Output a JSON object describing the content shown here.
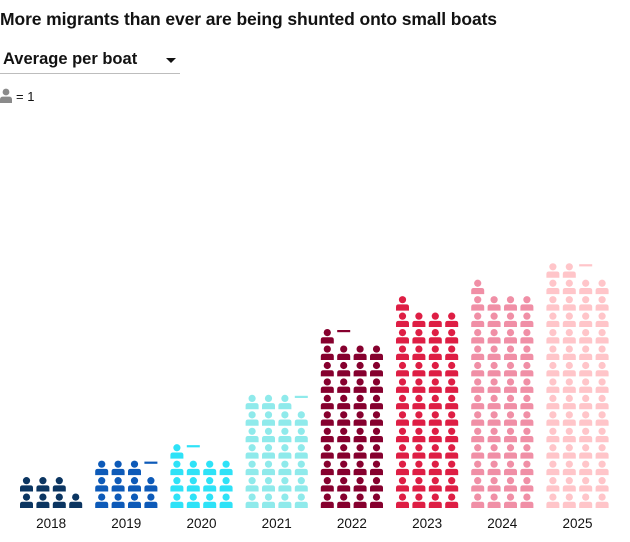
{
  "title": "More migrants than ever are being shunted onto small boats",
  "dropdown": {
    "selected": "Average per boat"
  },
  "legend": {
    "icon": "person-icon",
    "text": "= 1",
    "icon_color": "#8a8a8a"
  },
  "chart_data": {
    "type": "pictogram",
    "title": "More migrants than ever are being shunted onto small boats",
    "measure": "Average per boat",
    "unit_per_icon": 1,
    "icons_per_row": 4,
    "xlabel": "",
    "ylabel": "",
    "categories": [
      "2018",
      "2019",
      "2020",
      "2021",
      "2022",
      "2023",
      "2024",
      "2025"
    ],
    "values": [
      7,
      11.2,
      13.2,
      27.3,
      41.2,
      49,
      53,
      58.4
    ],
    "colors": [
      "#0b3561",
      "#0d5ab8",
      "#2ee2f7",
      "#8feaeb",
      "#86002e",
      "#de1e44",
      "#f08fa6",
      "#ffc5c9"
    ]
  }
}
